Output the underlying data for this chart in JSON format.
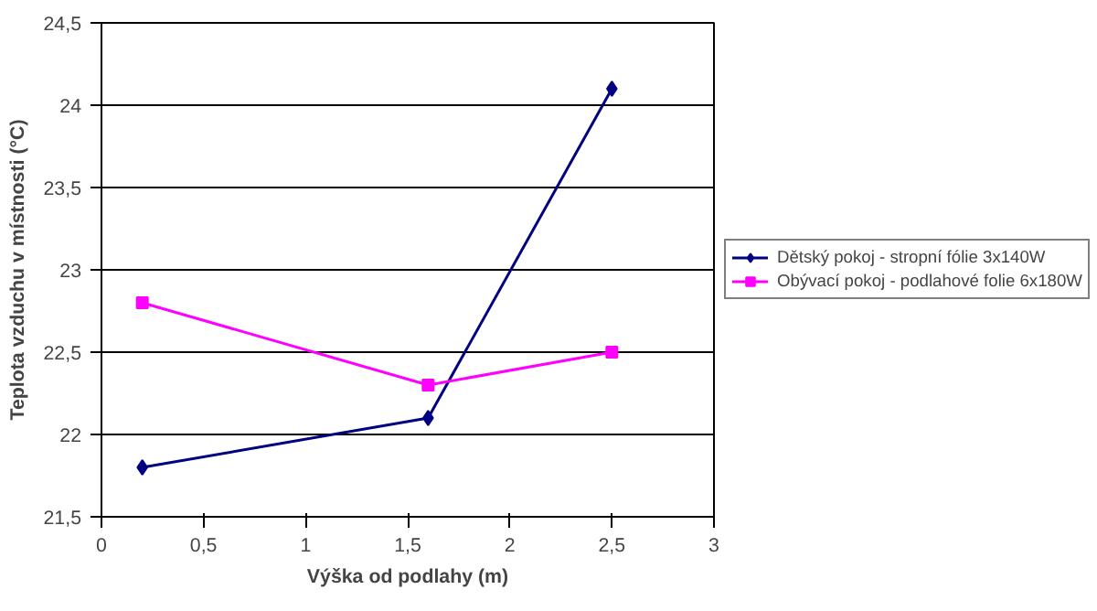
{
  "chart_data": {
    "type": "line",
    "xlabel": "Výška od podlahy (m)",
    "ylabel": "Teplota vzduchu v místnosti (°C)",
    "xlim": [
      0,
      3
    ],
    "ylim": [
      21.5,
      24.5
    ],
    "xticks": [
      0,
      {
        "value": 0.5,
        "label": "0,5"
      },
      1,
      {
        "value": 1.5,
        "label": "1,5"
      },
      2,
      {
        "value": 2.5,
        "label": "2,5"
      },
      3
    ],
    "yticks": [
      {
        "value": 21.5,
        "label": "21,5"
      },
      22,
      {
        "value": 22.5,
        "label": "22,5"
      },
      23,
      {
        "value": 23.5,
        "label": "23,5"
      },
      24,
      {
        "value": 24.5,
        "label": "24,5"
      }
    ],
    "x": [
      0.2,
      1.6,
      2.5
    ],
    "series": [
      {
        "name": "Dětský pokoj - stropní fólie 3x140W",
        "color": "#000080",
        "marker": "diamond",
        "values": [
          21.8,
          22.1,
          24.1
        ]
      },
      {
        "name": "Obývací pokoj - podlahové folie 6x180W",
        "color": "#ff00ff",
        "marker": "square",
        "values": [
          22.8,
          22.3,
          22.5
        ]
      }
    ],
    "grid": "y",
    "legend": "right"
  }
}
